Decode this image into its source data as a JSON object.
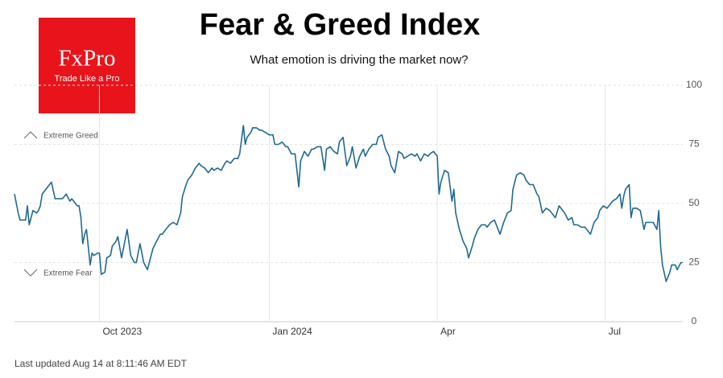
{
  "logo": {
    "name": "FxPro",
    "tagline": "Trade Like a Pro"
  },
  "chart_data": {
    "type": "line",
    "title": "Fear & Greed Index",
    "subtitle": "What emotion is driving the market now?",
    "annotations": [
      "Extreme Greed",
      "Extreme Fear"
    ],
    "footnote": "Last updated Aug 14 at 8:11:46 AM EDT",
    "xlim": [
      0,
      362
    ],
    "xticks": [
      {
        "value": 46,
        "label": "Oct 2023"
      },
      {
        "value": 138,
        "label": "Jan 2024"
      },
      {
        "value": 229,
        "label": "Apr"
      },
      {
        "value": 320,
        "label": "Jul"
      }
    ],
    "ylim": [
      0,
      100
    ],
    "yticks": [
      0,
      25,
      50,
      75,
      100
    ],
    "grid": true,
    "series": [
      {
        "color": "#1f6a93",
        "x": [
          0,
          2,
          3,
          6,
          7,
          8,
          10,
          12,
          13,
          14,
          15,
          17,
          18,
          20,
          22,
          24,
          26,
          28,
          30,
          31,
          34,
          35,
          36,
          37,
          38,
          39,
          41,
          42,
          43,
          45,
          46,
          47,
          49,
          50,
          52,
          53,
          55,
          56,
          58,
          59,
          61,
          63,
          65,
          66,
          68,
          70,
          72,
          73,
          75,
          77,
          79,
          80,
          82,
          84,
          86,
          88,
          90,
          91,
          93,
          94,
          96,
          98,
          100,
          101,
          103,
          105,
          107,
          108,
          110,
          112,
          114,
          115,
          117,
          119,
          121,
          122,
          124,
          125,
          126,
          128,
          129,
          131,
          133,
          134,
          136,
          138,
          140,
          141,
          143,
          145,
          147,
          148,
          150,
          152,
          154,
          155,
          157,
          159,
          161,
          162,
          164,
          166,
          168,
          169,
          171,
          173,
          175,
          176,
          178,
          180,
          182,
          183,
          185,
          187,
          189,
          190,
          192,
          194,
          196,
          197,
          199,
          201,
          203,
          204,
          206,
          208,
          210,
          211,
          213,
          215,
          217,
          218,
          220,
          222,
          224,
          225,
          227,
          229,
          230,
          231,
          233,
          235,
          237,
          238,
          239,
          241,
          243,
          245,
          246,
          248,
          249,
          251,
          253,
          255,
          256,
          258,
          260,
          262,
          263,
          265,
          267,
          269,
          270,
          272,
          274,
          276,
          277,
          279,
          281,
          283,
          284,
          286,
          288,
          290,
          291,
          293,
          295,
          297,
          298,
          300,
          302,
          303,
          305,
          307,
          309,
          310,
          312,
          314,
          316,
          317,
          319,
          321,
          323,
          324,
          326,
          328,
          329,
          330,
          331,
          333,
          334,
          335,
          337,
          339,
          341,
          342,
          344,
          346,
          348,
          349,
          350,
          351,
          353,
          355,
          356,
          358,
          359,
          361,
          362
        ],
        "values": [
          54,
          46,
          43,
          43,
          49,
          41,
          47,
          46,
          47,
          49,
          54,
          56,
          57,
          59,
          52,
          52,
          52,
          54,
          51,
          52,
          49,
          49,
          44,
          33,
          37,
          39,
          24,
          29,
          28,
          29,
          29,
          20,
          21,
          27,
          28,
          32,
          34,
          36,
          27,
          31,
          39,
          28,
          25,
          25,
          33,
          25,
          22,
          25,
          31,
          34,
          37,
          37,
          39,
          41,
          42,
          41,
          46,
          53,
          58,
          60,
          62,
          65,
          67,
          66,
          65,
          63,
          65,
          64,
          65,
          64,
          67,
          68,
          67,
          69,
          69,
          71,
          83,
          75,
          78,
          80,
          82,
          82,
          81,
          81,
          80,
          79,
          79,
          75,
          75,
          76,
          74,
          74,
          71,
          71,
          57,
          68,
          72,
          70,
          73,
          73,
          74,
          74,
          64,
          73,
          74,
          72,
          71,
          76,
          78,
          66,
          70,
          74,
          65,
          70,
          73,
          70,
          73,
          75,
          75,
          78,
          79,
          73,
          70,
          66,
          63,
          72,
          71,
          69,
          70,
          71,
          70,
          71,
          68,
          71,
          70,
          71,
          72,
          70,
          54,
          59,
          64,
          63,
          51,
          56,
          46,
          39,
          34,
          31,
          27,
          32,
          35,
          39,
          41,
          41,
          40,
          42,
          43,
          39,
          37,
          42,
          46,
          47,
          56,
          62,
          63,
          62,
          60,
          58,
          58,
          54,
          53,
          46,
          48,
          47,
          46,
          44,
          49,
          47,
          46,
          43,
          44,
          41,
          41,
          40,
          40,
          39,
          37,
          42,
          44,
          47,
          49,
          48,
          50,
          51,
          52,
          54,
          48,
          53,
          56,
          58,
          44,
          48,
          48,
          47,
          39,
          42,
          42,
          42,
          39,
          47,
          32,
          24,
          17,
          21,
          24,
          24,
          22,
          25,
          25
        ]
      }
    ]
  }
}
